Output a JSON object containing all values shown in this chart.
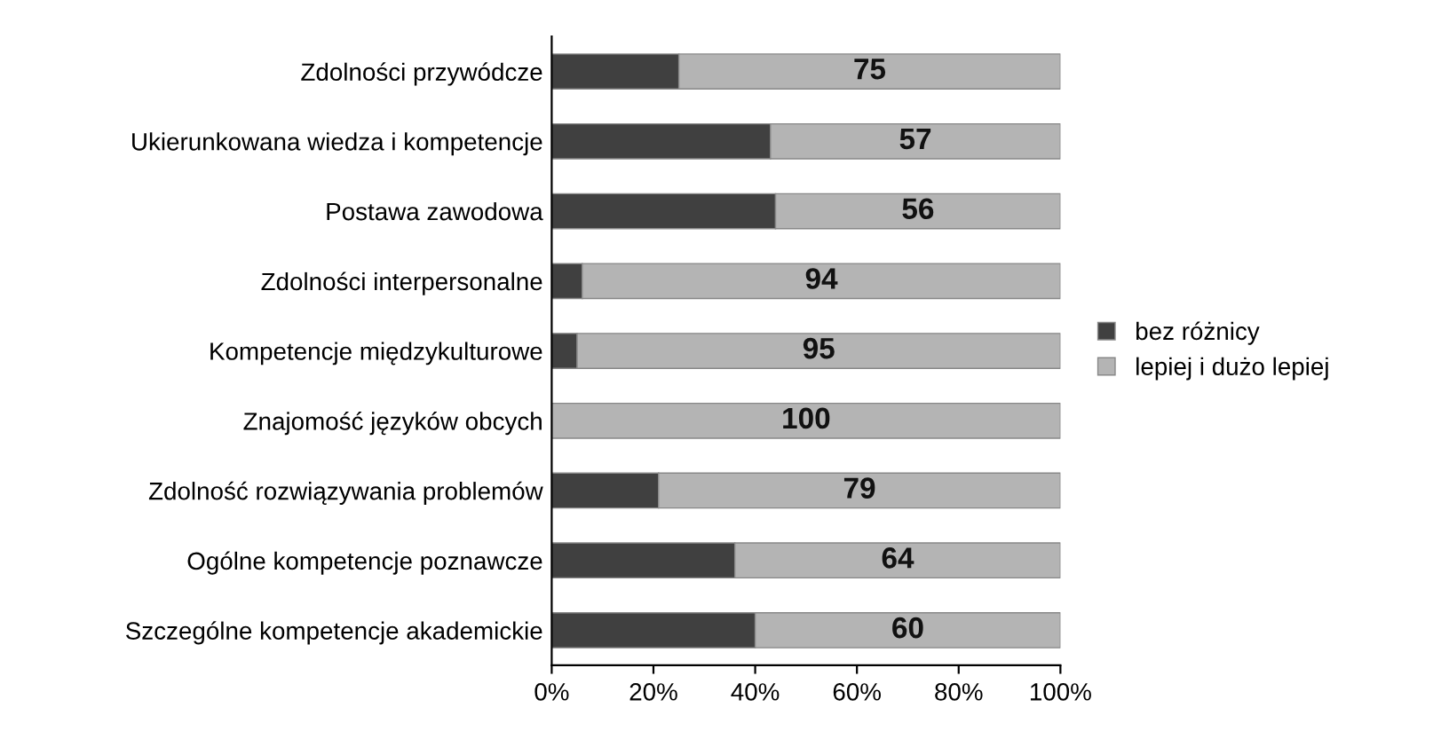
{
  "chart_data": {
    "type": "bar",
    "orientation": "horizontal",
    "stacked": true,
    "categories": [
      "Zdolności przywódcze",
      "Ukierunkowana wiedza i kompetencje",
      "Postawa zawodowa",
      "Zdolności interpersonalne",
      "Kompetencje międzykulturowe",
      "Znajomość języków obcych",
      "Zdolność rozwiązywania problemów",
      "Ogólne kompetencje poznawcze",
      "Szczególne kompetencje akademickie"
    ],
    "series": [
      {
        "name": "bez różnicy",
        "color": "#404040",
        "values": [
          25,
          43,
          44,
          6,
          5,
          0,
          21,
          36,
          40
        ]
      },
      {
        "name": "lepiej i dużo lepiej",
        "color": "#b4b4b4",
        "values": [
          75,
          57,
          56,
          94,
          95,
          100,
          79,
          64,
          60
        ],
        "value_labels": [
          "75",
          "57",
          "56",
          "94",
          "95",
          "100",
          "79",
          "64",
          "60"
        ]
      }
    ],
    "xlim": [
      0,
      100
    ],
    "xticks": [
      {
        "value": 0,
        "label": "0%"
      },
      {
        "value": 20,
        "label": "20%"
      },
      {
        "value": 40,
        "label": "40%"
      },
      {
        "value": 60,
        "label": "60%"
      },
      {
        "value": 80,
        "label": "80%"
      },
      {
        "value": 100,
        "label": "100%"
      }
    ],
    "grid": false,
    "legend": "right"
  }
}
